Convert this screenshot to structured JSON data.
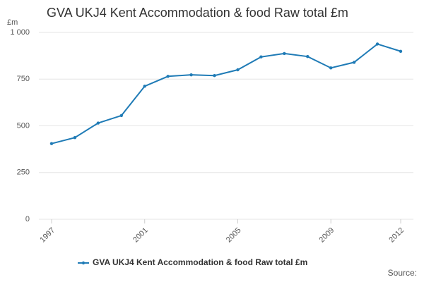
{
  "chart_data": {
    "type": "line",
    "title": "GVA UKJ4 Kent Accommodation & food Raw total £m",
    "y_unit": "£m",
    "source": "Source:",
    "x": [
      1997,
      1998,
      1999,
      2000,
      2001,
      2002,
      2003,
      2004,
      2005,
      2006,
      2007,
      2008,
      2009,
      2010,
      2011,
      2012
    ],
    "series": [
      {
        "name": "GVA UKJ4 Kent Accommodation & food Raw total £m",
        "color": "#1f7bb6",
        "values": [
          405,
          437,
          515,
          555,
          712,
          765,
          773,
          769,
          800,
          869,
          887,
          871,
          810,
          840,
          938,
          899
        ]
      }
    ],
    "xlim": [
      1997,
      2012
    ],
    "xticks": [
      1997,
      2001,
      2005,
      2009,
      2012
    ],
    "ylim": [
      0,
      1000
    ],
    "yticks": [
      0,
      250,
      500,
      750,
      {
        "value": 1000,
        "label": "1 000"
      }
    ],
    "grid": true
  }
}
